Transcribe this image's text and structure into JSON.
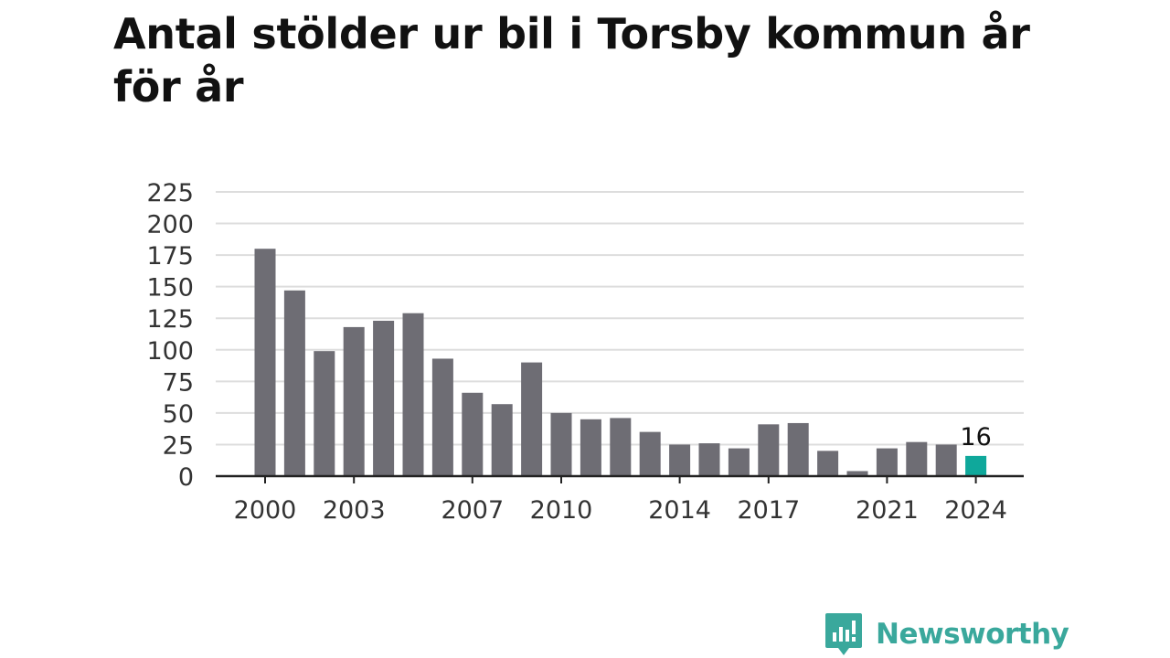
{
  "chart_data": {
    "type": "bar",
    "title": "Antal stölder ur bil i Torsby kommun år för år",
    "xlabel": "",
    "ylabel": "",
    "categories": [
      "2000",
      "2001",
      "2002",
      "2003",
      "2004",
      "2005",
      "2006",
      "2007",
      "2008",
      "2009",
      "2010",
      "2011",
      "2012",
      "2013",
      "2014",
      "2015",
      "2016",
      "2017",
      "2018",
      "2019",
      "2020",
      "2021",
      "2022",
      "2023",
      "2024"
    ],
    "x_tick_labels": [
      "2000",
      "2003",
      "2007",
      "2010",
      "2014",
      "2017",
      "2021",
      "2024"
    ],
    "values": [
      180,
      147,
      99,
      118,
      123,
      129,
      93,
      66,
      57,
      90,
      50,
      45,
      46,
      35,
      25,
      26,
      22,
      41,
      42,
      20,
      4,
      22,
      27,
      25,
      16
    ],
    "ylim": [
      0,
      225
    ],
    "y_ticks": [
      0,
      25,
      50,
      75,
      100,
      125,
      150,
      175,
      200,
      225
    ],
    "grid": true,
    "highlight": {
      "index": 24,
      "label": "16"
    },
    "colors": {
      "bar": "#6e6d74",
      "highlight": "#0fa89b",
      "grid": "#dddddd",
      "axis": "#222222"
    }
  },
  "brand": {
    "name": "Newsworthy",
    "icon": "newsworthy-logo-icon",
    "color": "#3aa89c"
  }
}
